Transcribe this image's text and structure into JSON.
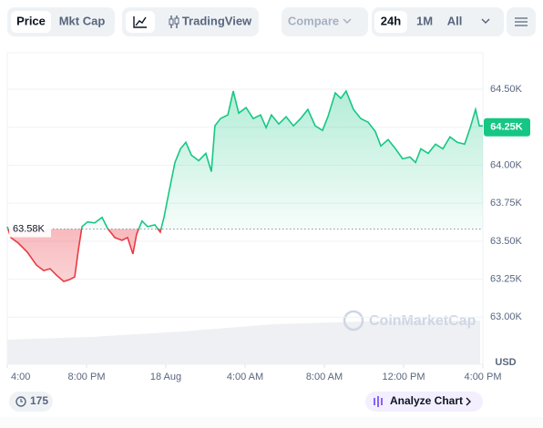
{
  "toolbar": {
    "price": "Price",
    "mkt_cap": "Mkt Cap",
    "tradingview": "TradingView",
    "compare": "Compare",
    "ranges": [
      "24h",
      "1M",
      "All"
    ]
  },
  "chart_data": {
    "type": "line",
    "x": [
      0,
      0.18,
      0.55,
      1.01,
      1.47,
      1.84,
      2.16,
      2.48,
      2.85,
      3.13,
      3.4,
      3.59,
      3.77,
      4.05,
      4.41,
      4.78,
      5.06,
      5.43,
      5.79,
      6.07,
      6.34,
      6.53,
      6.8,
      7.08,
      7.45,
      7.72,
      7.91,
      8.18,
      8.46,
      8.74,
      9.01,
      9.29,
      9.66,
      10.02,
      10.3,
      10.48,
      10.76,
      11.13,
      11.4,
      11.68,
      12.05,
      12.41,
      12.78,
      13.06,
      13.33,
      13.7,
      14.07,
      14.44,
      14.8,
      15.17,
      15.54,
      15.91,
      16.18,
      16.55,
      16.83,
      17.1,
      17.47,
      17.84,
      18.21,
      18.57,
      18.85,
      19.22,
      19.59,
      19.95,
      20.32,
      20.6,
      20.87,
      21.24,
      21.61,
      21.98,
      22.34,
      22.71,
      23.08,
      23.36,
      23.63,
      23.82,
      24
    ],
    "values": [
      63596,
      63524,
      63488,
      63428,
      63343,
      63307,
      63319,
      63277,
      63235,
      63247,
      63265,
      63446,
      63596,
      63627,
      63620,
      63657,
      63584,
      63524,
      63506,
      63524,
      63416,
      63548,
      63633,
      63596,
      63608,
      63560,
      63657,
      63837,
      64018,
      64108,
      64151,
      64066,
      64030,
      64078,
      63958,
      64259,
      64307,
      64331,
      64488,
      64343,
      64380,
      64307,
      64331,
      64247,
      64331,
      64271,
      64319,
      64259,
      64307,
      64367,
      64259,
      64229,
      64319,
      64476,
      64440,
      64488,
      64367,
      64307,
      64283,
      64223,
      64127,
      64169,
      64108,
      64042,
      64054,
      64018,
      64108,
      64078,
      64139,
      64108,
      64187,
      64151,
      64139,
      64247,
      64367,
      64259,
      64259
    ],
    "up_color": "#16c784",
    "down_color": "#ea3943",
    "baseline": {
      "value": 63580,
      "label": "63.58K"
    },
    "current_price": {
      "value": 64250,
      "label": "64.25K"
    },
    "xlim": [
      0,
      24
    ],
    "xticks": [
      {
        "value": 0,
        "label": "4:00"
      },
      {
        "value": 4,
        "label": "8:00 PM"
      },
      {
        "value": 8,
        "label": "18 Aug"
      },
      {
        "value": 12,
        "label": "4:00 AM"
      },
      {
        "value": 16,
        "label": "8:00 AM"
      },
      {
        "value": 20,
        "label": "12:00 PM"
      },
      {
        "value": 24,
        "label": "4:00 PM"
      }
    ],
    "ylim": [
      62690,
      64740
    ],
    "yticks": [
      {
        "value": 63000,
        "label": "63.00K"
      },
      {
        "value": 63250,
        "label": "63.25K"
      },
      {
        "value": 63500,
        "label": "63.50K"
      },
      {
        "value": 63750,
        "label": "63.75K"
      },
      {
        "value": 64000,
        "label": "64.00K"
      },
      {
        "value": 64250,
        "label": "64.25K"
      },
      {
        "value": 64500,
        "label": "64.50K"
      }
    ],
    "ylabel": "USD",
    "grid": true
  },
  "watermark": "CoinMarketCap",
  "footer": {
    "count": "175",
    "analyze": "Analyze Chart"
  }
}
